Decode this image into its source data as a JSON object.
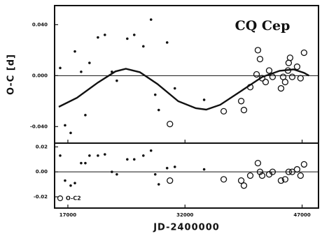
{
  "chart_data": [
    {
      "type": "scatter",
      "title": "CQ Cep",
      "ylabel": "O-C [d]",
      "xlim": [
        15300,
        49100
      ],
      "ylim": [
        -0.053,
        0.055
      ],
      "yticks": [
        {
          "value": 0.04,
          "label": "0.040"
        },
        {
          "value": 0,
          "label": "0.000"
        },
        {
          "value": -0.04,
          "label": "-0.040"
        }
      ],
      "zero_line": true,
      "series": [
        {
          "style": "dot",
          "color": "#111111",
          "x": [
            16015,
            16640,
            17360,
            17900,
            18700,
            19240,
            19770,
            20850,
            21740,
            22640,
            23270,
            24610,
            25500,
            26670,
            27650,
            28190,
            28640,
            29710,
            30700,
            34450
          ],
          "values": [
            0.006,
            -0.039,
            -0.045,
            0.019,
            0.003,
            -0.031,
            0.01,
            0.03,
            0.032,
            0.003,
            -0.004,
            0.029,
            0.032,
            0.023,
            0.044,
            -0.015,
            -0.027,
            0.026,
            -0.01,
            -0.019
          ]
        },
        {
          "style": "circle",
          "color": "#111111",
          "x": [
            30070,
            36960,
            39200,
            39550,
            40360,
            41340,
            41610,
            41170,
            41880,
            42780,
            42330,
            43220,
            44300,
            44830,
            45280,
            45190,
            45460,
            45730,
            46800,
            47250,
            46360,
            44570
          ],
          "values": [
            -0.038,
            -0.028,
            -0.02,
            -0.027,
            -0.009,
            0.02,
            0.013,
            0.001,
            -0.002,
            0.004,
            -0.005,
            -0.001,
            -0.01,
            -0.005,
            0.01,
            0.004,
            0.014,
            -0.001,
            -0.002,
            0.018,
            0.007,
            -0.001
          ]
        },
        {
          "style": "line",
          "color": "#111111",
          "x": [
            15840,
            18160,
            20850,
            23090,
            24430,
            26220,
            28460,
            31140,
            33380,
            34720,
            36510,
            39200,
            41880,
            44120,
            45910,
            47250,
            47880
          ],
          "values": [
            -0.0245,
            -0.0174,
            -0.0054,
            0.0033,
            0.0054,
            0.0027,
            -0.0065,
            -0.0201,
            -0.0256,
            -0.0267,
            -0.0229,
            -0.012,
            -0.0011,
            0.0038,
            0.0049,
            0.0022,
            0
          ]
        }
      ]
    },
    {
      "type": "scatter",
      "title": "O-C2",
      "xlabel": "JD-2400000",
      "xlim": [
        15300,
        49100
      ],
      "xticks": [
        17000,
        32000,
        47000
      ],
      "ylim": [
        -0.029,
        0.023
      ],
      "yticks": [
        {
          "value": 0.02,
          "label": "0.02"
        },
        {
          "value": 0,
          "label": "0.00"
        },
        {
          "value": -0.02,
          "label": "-0.02"
        }
      ],
      "zero_line": true,
      "series": [
        {
          "style": "dot",
          "color": "#111111",
          "x": [
            16015,
            16640,
            17360,
            17900,
            18700,
            19240,
            19770,
            20850,
            21740,
            22640,
            23270,
            24610,
            25500,
            26670,
            27650,
            28190,
            28640,
            29710,
            30700,
            34450
          ],
          "values": [
            0.013,
            -0.007,
            -0.011,
            -0.009,
            0.007,
            0.007,
            0.013,
            0.013,
            0.014,
            0,
            -0.002,
            0.01,
            0.01,
            0.013,
            0.017,
            -0.002,
            -0.01,
            0.003,
            0.004,
            0.002
          ]
        },
        {
          "style": "circle",
          "color": "#111111",
          "x": [
            30070,
            36960,
            39200,
            39550,
            40360,
            41340,
            41610,
            41880,
            42780,
            43220,
            44300,
            44830,
            45280,
            45730,
            46800,
            47250,
            46360
          ],
          "values": [
            -0.007,
            -0.006,
            -0.007,
            -0.011,
            -0.003,
            0.007,
            0,
            -0.003,
            -0.002,
            0,
            -0.007,
            -0.006,
            0,
            0,
            -0.003,
            0.006,
            0.002
          ]
        }
      ]
    }
  ]
}
